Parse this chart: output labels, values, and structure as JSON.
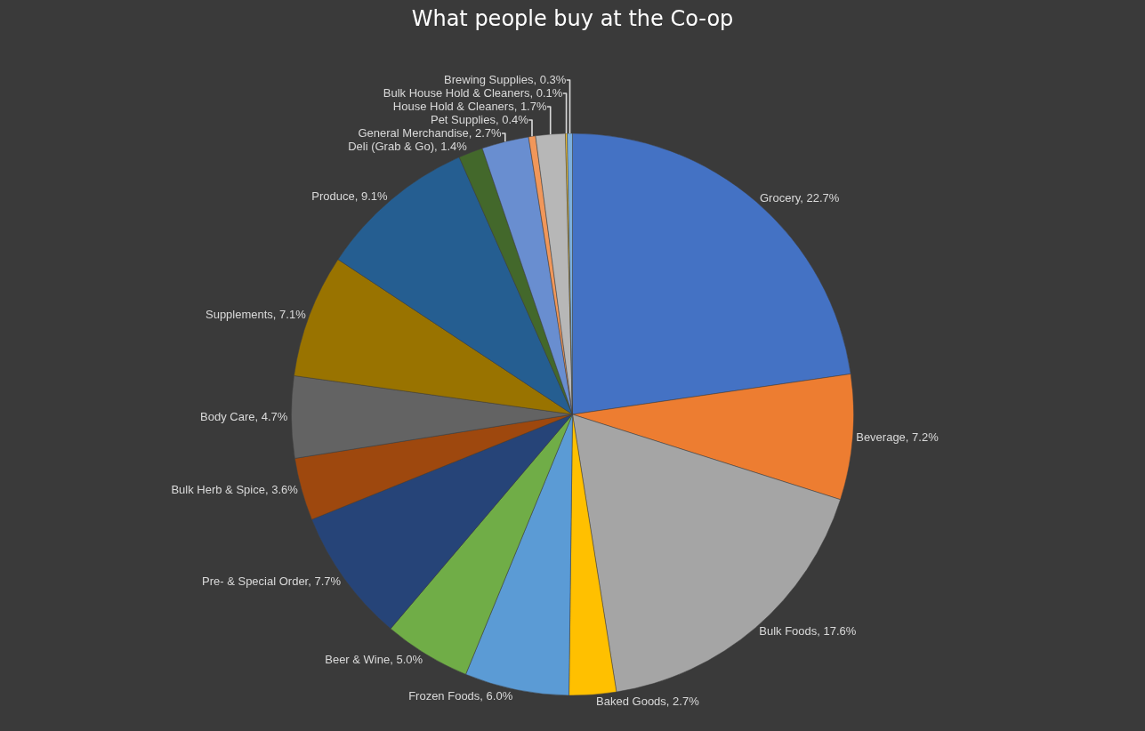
{
  "chart_data": {
    "type": "pie",
    "title": "What people buy at the Co-op",
    "categories": [
      "Grocery",
      "Beverage",
      "Bulk Foods",
      "Baked Goods",
      "Frozen Foods",
      "Beer & Wine",
      "Pre- & Special Order",
      "Bulk Herb & Spice",
      "Body Care",
      "Supplements",
      "Produce",
      "Deli (Grab & Go)",
      "General Merchandise",
      "Pet Supplies",
      "House Hold & Cleaners",
      "Bulk House Hold & Cleaners",
      "Brewing Supplies"
    ],
    "values": [
      22.7,
      7.2,
      17.6,
      2.7,
      6.0,
      5.0,
      7.7,
      3.6,
      4.7,
      7.1,
      9.1,
      1.4,
      2.7,
      0.4,
      1.7,
      0.1,
      0.3
    ],
    "value_labels": [
      "22.7%",
      "7.2%",
      "17.6%",
      "2.7%",
      "6.0%",
      "5.0%",
      "7.7%",
      "3.6%",
      "4.7%",
      "7.1%",
      "9.1%",
      "1.4%",
      "2.7%",
      "0.4%",
      "1.7%",
      "0.1%",
      "0.3%"
    ],
    "colors": [
      "#4472c4",
      "#ed7d31",
      "#a5a5a5",
      "#ffc000",
      "#5b9bd5",
      "#70ad47",
      "#264478",
      "#9e480e",
      "#636363",
      "#997300",
      "#255e91",
      "#43682b",
      "#698ed0",
      "#f1975a",
      "#b7b7b7",
      "#ffcd33",
      "#7cafdd"
    ],
    "legend": false
  }
}
